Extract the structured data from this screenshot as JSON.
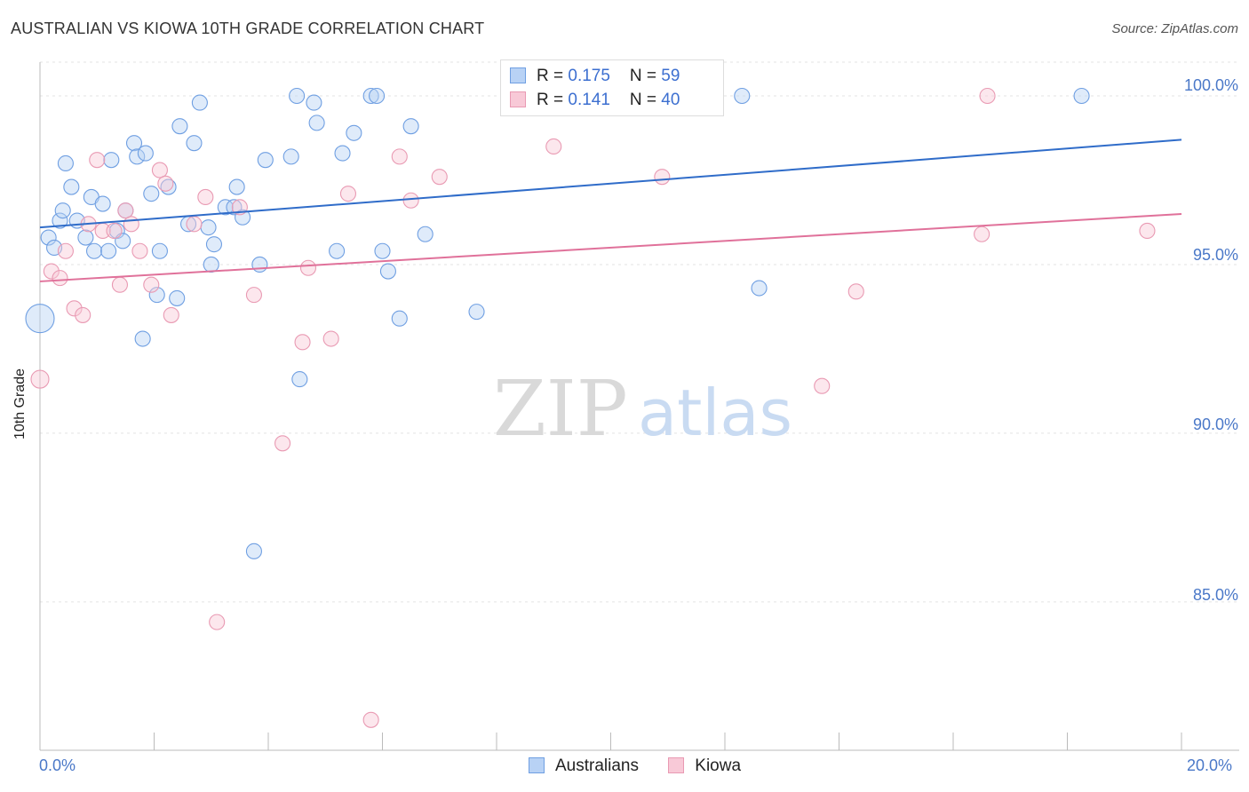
{
  "title": "AUSTRALIAN VS KIOWA 10TH GRADE CORRELATION CHART",
  "source": "Source: ZipAtlas.com",
  "watermark": {
    "zip": "ZIP",
    "atlas": "atlas"
  },
  "legend": {
    "rows": [
      {
        "r_label": "R = ",
        "r_value": "0.175",
        "n_label": "N = ",
        "n_value": "59"
      },
      {
        "r_label": "R = ",
        "r_value": "0.141",
        "n_label": "N = ",
        "n_value": "40"
      }
    ]
  },
  "bottom_legend": [
    "Australians",
    "Kiowa"
  ],
  "colors": {
    "australians": "#6f9fe2",
    "kiowa": "#e99ab3",
    "aus_line": "#2f6cc9",
    "kiowa_line": "#e0719a",
    "grid": "#e3e3e3",
    "tick_text": "#4a78c8"
  },
  "chart_data": {
    "type": "scatter",
    "title": "AUSTRALIAN VS KIOWA 10TH GRADE CORRELATION CHART",
    "xlabel": "",
    "ylabel": "10th Grade",
    "xlim": [
      0,
      20
    ],
    "ylim": [
      80.6,
      101
    ],
    "x_tick_labels": [
      "0.0%",
      "20.0%"
    ],
    "y_ticks": [
      85,
      90,
      95,
      100
    ],
    "y_tick_labels": [
      "85.0%",
      "90.0%",
      "95.0%",
      "100.0%"
    ],
    "grid": true,
    "legend_position": "top-center",
    "series": [
      {
        "name": "Australians",
        "R": 0.175,
        "N": 59,
        "trend": {
          "x": [
            0,
            20
          ],
          "y": [
            96.1,
            98.7
          ]
        },
        "points": [
          [
            0.0,
            93.4
          ],
          [
            0.15,
            95.8
          ],
          [
            0.25,
            95.5
          ],
          [
            0.35,
            96.3
          ],
          [
            0.4,
            96.6
          ],
          [
            0.45,
            98.0
          ],
          [
            0.55,
            97.3
          ],
          [
            0.65,
            96.3
          ],
          [
            0.8,
            95.8
          ],
          [
            0.9,
            97.0
          ],
          [
            0.95,
            95.4
          ],
          [
            1.1,
            96.8
          ],
          [
            1.2,
            95.4
          ],
          [
            1.25,
            98.1
          ],
          [
            1.35,
            96.0
          ],
          [
            1.45,
            95.7
          ],
          [
            1.5,
            96.6
          ],
          [
            1.65,
            98.6
          ],
          [
            1.7,
            98.2
          ],
          [
            1.8,
            92.8
          ],
          [
            1.85,
            98.3
          ],
          [
            1.95,
            97.1
          ],
          [
            2.05,
            94.1
          ],
          [
            2.1,
            95.4
          ],
          [
            2.25,
            97.3
          ],
          [
            2.4,
            94.0
          ],
          [
            2.45,
            99.1
          ],
          [
            2.6,
            96.2
          ],
          [
            2.7,
            98.6
          ],
          [
            2.8,
            99.8
          ],
          [
            2.95,
            96.1
          ],
          [
            3.0,
            95.0
          ],
          [
            3.05,
            95.6
          ],
          [
            3.25,
            96.7
          ],
          [
            3.4,
            96.7
          ],
          [
            3.45,
            97.3
          ],
          [
            3.55,
            96.4
          ],
          [
            3.75,
            86.5
          ],
          [
            3.85,
            95.0
          ],
          [
            3.95,
            98.1
          ],
          [
            4.4,
            98.2
          ],
          [
            4.5,
            100.0
          ],
          [
            4.55,
            91.6
          ],
          [
            4.8,
            99.8
          ],
          [
            4.85,
            99.2
          ],
          [
            5.2,
            95.4
          ],
          [
            5.3,
            98.3
          ],
          [
            5.5,
            98.9
          ],
          [
            5.8,
            100.0
          ],
          [
            5.9,
            100.0
          ],
          [
            6.0,
            95.4
          ],
          [
            6.1,
            94.8
          ],
          [
            6.3,
            93.4
          ],
          [
            6.5,
            99.1
          ],
          [
            6.75,
            95.9
          ],
          [
            7.65,
            93.6
          ],
          [
            12.3,
            100.0
          ],
          [
            12.6,
            94.3
          ],
          [
            18.25,
            100.0
          ]
        ]
      },
      {
        "name": "Kiowa",
        "R": 0.141,
        "N": 40,
        "trend": {
          "x": [
            0,
            20
          ],
          "y": [
            94.5,
            96.5
          ]
        },
        "points": [
          [
            0.0,
            91.6
          ],
          [
            0.2,
            94.8
          ],
          [
            0.35,
            94.6
          ],
          [
            0.45,
            95.4
          ],
          [
            0.6,
            93.7
          ],
          [
            0.75,
            93.5
          ],
          [
            0.85,
            96.2
          ],
          [
            1.0,
            98.1
          ],
          [
            1.1,
            96.0
          ],
          [
            1.3,
            96.0
          ],
          [
            1.4,
            94.4
          ],
          [
            1.5,
            96.6
          ],
          [
            1.6,
            96.2
          ],
          [
            1.75,
            95.4
          ],
          [
            1.95,
            94.4
          ],
          [
            2.1,
            97.8
          ],
          [
            2.2,
            97.4
          ],
          [
            2.3,
            93.5
          ],
          [
            2.7,
            96.2
          ],
          [
            2.9,
            97.0
          ],
          [
            3.1,
            84.4
          ],
          [
            3.5,
            96.7
          ],
          [
            3.75,
            94.1
          ],
          [
            4.25,
            89.7
          ],
          [
            4.6,
            92.7
          ],
          [
            4.7,
            94.9
          ],
          [
            5.1,
            92.8
          ],
          [
            5.4,
            97.1
          ],
          [
            5.8,
            81.5
          ],
          [
            6.3,
            98.2
          ],
          [
            6.5,
            96.9
          ],
          [
            7.0,
            97.6
          ],
          [
            9.0,
            98.5
          ],
          [
            9.1,
            100.0
          ],
          [
            10.9,
            97.6
          ],
          [
            13.7,
            91.4
          ],
          [
            14.3,
            94.2
          ],
          [
            16.6,
            100.0
          ],
          [
            16.5,
            95.9
          ],
          [
            19.4,
            96.0
          ]
        ]
      }
    ]
  }
}
